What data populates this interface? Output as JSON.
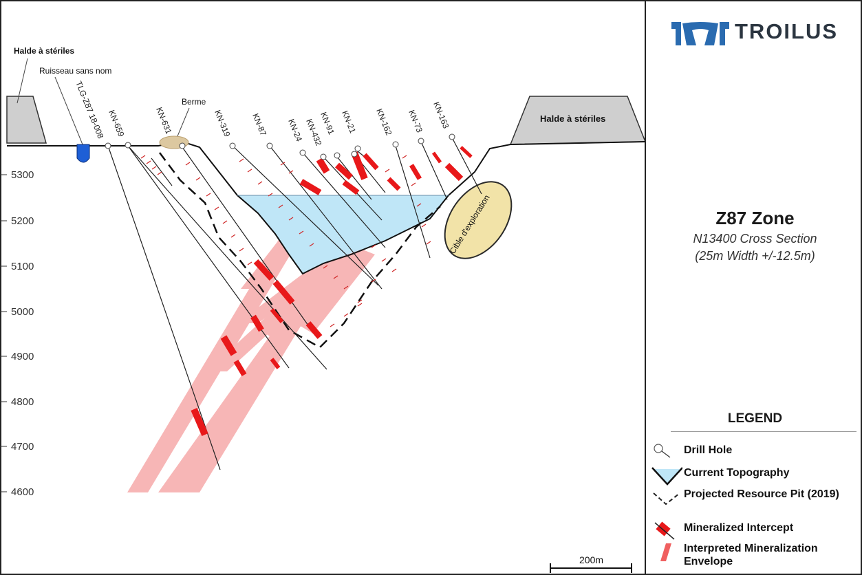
{
  "logo": {
    "name": "TROILUS"
  },
  "panel": {
    "title": "Z87 Zone",
    "subtitle1": "N13400 Cross Section",
    "subtitle2": "(25m Width +/-12.5m)"
  },
  "legend": {
    "title": "LEGEND",
    "items": [
      {
        "label": "Drill Hole"
      },
      {
        "label": "Current Topography"
      },
      {
        "label": "Projected Resource Pit (2019)"
      },
      {
        "label": "Mineralized Intercept"
      },
      {
        "label": "Interpreted Mineralization Envelope"
      }
    ]
  },
  "scale": {
    "label": "200m"
  },
  "elevations": [
    "5300",
    "5200",
    "5100",
    "5000",
    "4900",
    "4800",
    "4700",
    "4600"
  ],
  "labels": {
    "waste_left": "Halde à stériles",
    "waste_right": "Halde à stériles",
    "stream": "Ruisseau sans nom",
    "berm": "Berme",
    "target": "Cible d'exploration"
  },
  "holes": [
    "TLG-Z87 18-008",
    "KN-659",
    "KN-631",
    "KN-319",
    "KN-87",
    "KN-24",
    "KN-432",
    "KN-91",
    "KN-21",
    "KN-162",
    "KN-73",
    "KN-163"
  ],
  "colors": {
    "water": "#bfe6f7",
    "envelope": "#f6aaaa",
    "intercept": "#e8181a",
    "waste": "#cfcfcf",
    "target": "#f2e3a8"
  }
}
